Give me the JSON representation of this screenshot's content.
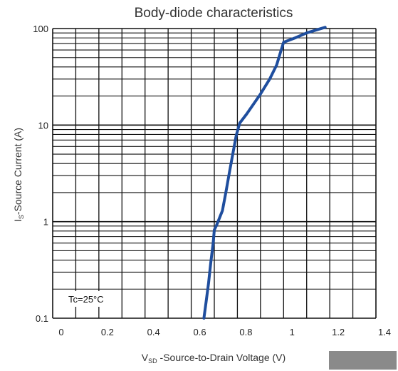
{
  "chart_data": {
    "type": "line",
    "title": "Body-diode characteristics",
    "xlabel": {
      "prefix": "V",
      "sub": "SD",
      "rest": " -Source-to-Drain Voltage (V)"
    },
    "ylabel": {
      "prefix": "I",
      "sub": "S",
      "rest": "-Source Current (A)"
    },
    "xlim": [
      0,
      1.4
    ],
    "ylim": [
      0.1,
      100
    ],
    "yscale": "log",
    "grid": true,
    "x_ticks": [
      {
        "v": 0,
        "label": "0"
      },
      {
        "v": 0.2,
        "label": "0.2"
      },
      {
        "v": 0.4,
        "label": "0.4"
      },
      {
        "v": 0.6,
        "label": "0.6"
      },
      {
        "v": 0.8,
        "label": "0.8"
      },
      {
        "v": 1.0,
        "label": "1"
      },
      {
        "v": 1.2,
        "label": "1.2"
      },
      {
        "v": 1.4,
        "label": "1.4"
      }
    ],
    "y_ticks": [
      {
        "v": 0.1,
        "label": "0.1"
      },
      {
        "v": 1,
        "label": "1"
      },
      {
        "v": 10,
        "label": "10"
      },
      {
        "v": 100,
        "label": "100"
      }
    ],
    "annotation": "Tc=25°C",
    "series": [
      {
        "color": "#1f4e9e",
        "x": [
          0.655,
          0.665,
          0.675,
          0.685,
          0.695,
          0.7,
          0.71,
          0.735,
          0.75,
          0.765,
          0.78,
          0.795,
          0.81,
          0.84,
          0.87,
          0.9,
          0.94,
          0.97,
          0.985,
          1.0,
          1.05,
          1.1,
          1.15,
          1.18
        ],
        "y": [
          0.1,
          0.15,
          0.23,
          0.38,
          0.6,
          0.82,
          0.92,
          1.3,
          2.0,
          3.2,
          5.0,
          7.8,
          10.5,
          13,
          16.5,
          21,
          30,
          42,
          55,
          72,
          80,
          90,
          98,
          103
        ]
      }
    ]
  },
  "colors": {
    "curve": "#1f4e9e",
    "grid": "#111111"
  }
}
